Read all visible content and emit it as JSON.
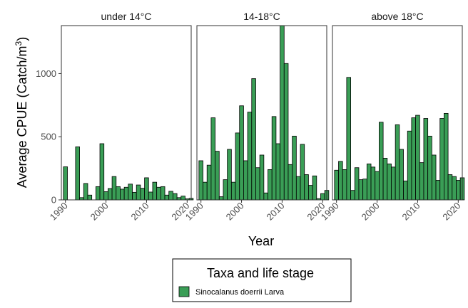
{
  "chart_data": {
    "type": "bar",
    "xlabel": "Year",
    "ylabel": "Average CPUE (Catch/m",
    "ylabel_superscript": "3",
    "ylabel_suffix": ")",
    "ylim": [
      0,
      1380
    ],
    "xlim": [
      1989,
      2021
    ],
    "y_ticks": [
      0,
      500,
      1000
    ],
    "x_ticks": [
      1990,
      2000,
      2010,
      2020
    ],
    "grid": false,
    "bar_color": "#3a9e56",
    "bar_outline": "#000000",
    "legend": {
      "title": "Taxa and life stage",
      "placement": "bottom",
      "entries": [
        {
          "label": "Sinocalanus doerrii Larva",
          "color": "#3a9e56"
        }
      ]
    },
    "panels": [
      {
        "label": "under 14°C",
        "x": [
          1990,
          1993,
          1994,
          1995,
          1996,
          1998,
          1999,
          2000,
          2001,
          2002,
          2003,
          2004,
          2005,
          2006,
          2007,
          2008,
          2009,
          2010,
          2011,
          2012,
          2013,
          2014,
          2015,
          2016,
          2017,
          2018,
          2019,
          2020,
          2021
        ],
        "values": [
          262,
          420,
          18,
          130,
          38,
          105,
          445,
          65,
          90,
          185,
          105,
          85,
          100,
          125,
          60,
          118,
          92,
          175,
          62,
          140,
          100,
          105,
          38,
          68,
          50,
          18,
          30,
          8,
          12
        ]
      },
      {
        "label": "14-18°C",
        "x": [
          1990,
          1991,
          1992,
          1993,
          1994,
          1995,
          1996,
          1997,
          1998,
          1999,
          2000,
          2001,
          2002,
          2003,
          2004,
          2005,
          2006,
          2007,
          2008,
          2009,
          2010,
          2011,
          2012,
          2013,
          2014,
          2015,
          2016,
          2017,
          2018,
          2019,
          2020,
          2021
        ],
        "values": [
          310,
          140,
          275,
          650,
          385,
          25,
          160,
          400,
          140,
          530,
          745,
          310,
          695,
          960,
          255,
          355,
          55,
          240,
          660,
          445,
          1380,
          1080,
          280,
          505,
          185,
          440,
          200,
          115,
          190,
          10,
          50,
          75
        ]
      },
      {
        "label": "above 18°C",
        "x": [
          1990,
          1991,
          1992,
          1993,
          1994,
          1995,
          1996,
          1997,
          1998,
          1999,
          2000,
          2001,
          2002,
          2003,
          2004,
          2005,
          2006,
          2007,
          2008,
          2009,
          2010,
          2011,
          2012,
          2013,
          2014,
          2015,
          2016,
          2017,
          2018,
          2019,
          2020,
          2021
        ],
        "values": [
          235,
          305,
          240,
          970,
          75,
          255,
          160,
          165,
          285,
          260,
          225,
          615,
          330,
          285,
          260,
          595,
          400,
          150,
          545,
          650,
          670,
          295,
          645,
          505,
          355,
          155,
          645,
          685,
          200,
          185,
          155,
          175
        ]
      }
    ]
  }
}
